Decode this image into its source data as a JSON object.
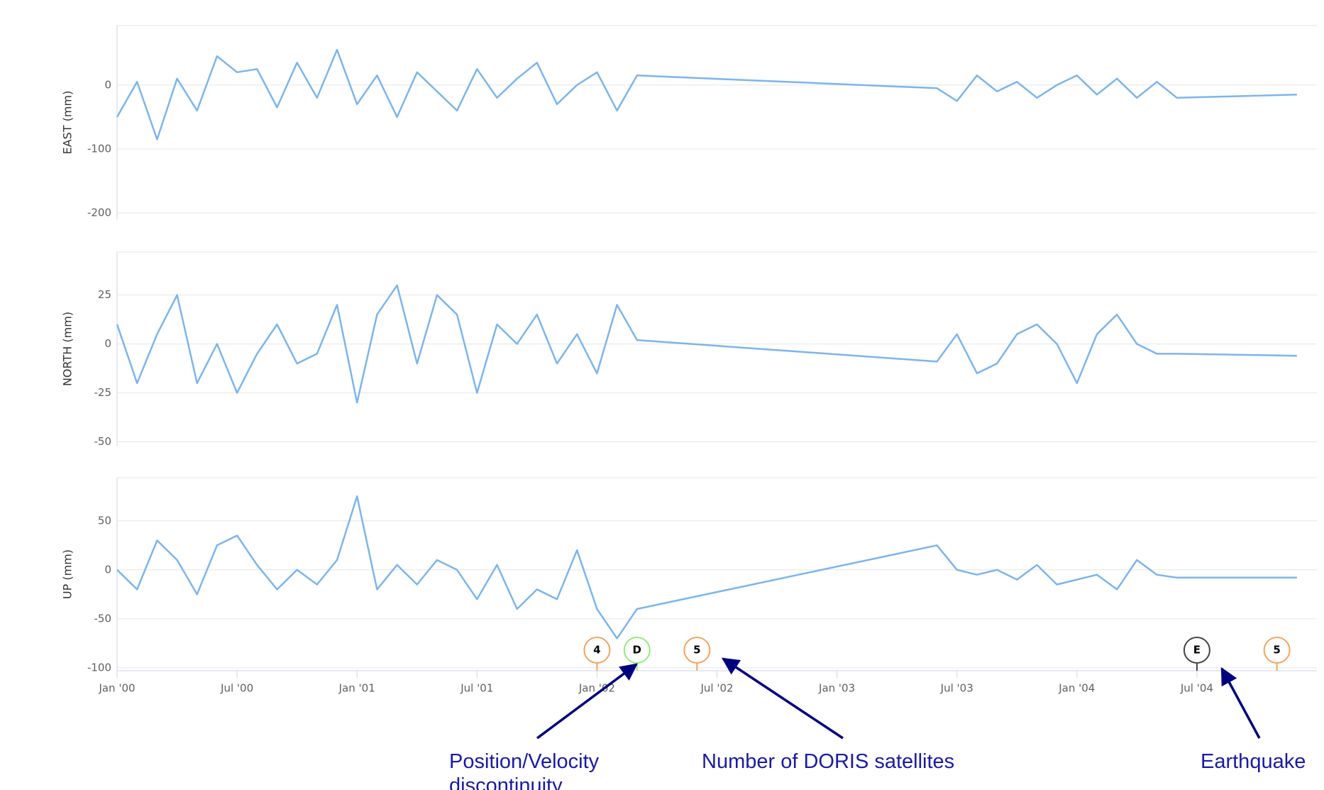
{
  "chart_data": [
    {
      "type": "line",
      "y_label": "EAST (mm)",
      "x": [
        "2000-01",
        "2000-02",
        "2000-03",
        "2000-04",
        "2000-05",
        "2000-06",
        "2000-07",
        "2000-08",
        "2000-09",
        "2000-10",
        "2000-11",
        "2000-12",
        "2001-01",
        "2001-02",
        "2001-03",
        "2001-04",
        "2001-05",
        "2001-06",
        "2001-07",
        "2001-08",
        "2001-09",
        "2001-10",
        "2001-11",
        "2001-12",
        "2002-01",
        "2002-02",
        "2002-03",
        "2003-06",
        "2003-07",
        "2003-08",
        "2003-09",
        "2003-10",
        "2003-11",
        "2003-12",
        "2004-01",
        "2004-02",
        "2004-03",
        "2004-04",
        "2004-05",
        "2004-06",
        "2004-12"
      ],
      "xlim": [
        "2000-01",
        "2005-01"
      ],
      "ylim": [
        -210,
        93
      ],
      "yticks": [
        -200,
        -100,
        0
      ],
      "grid": true,
      "series": [
        {
          "color": "#7cb5ec",
          "values": [
            -50,
            5,
            -85,
            10,
            -40,
            45,
            20,
            25,
            -35,
            35,
            -20,
            55,
            -30,
            15,
            -50,
            20,
            -10,
            -40,
            25,
            -20,
            10,
            35,
            -30,
            0,
            20,
            -40,
            15,
            -5,
            -25,
            15,
            -10,
            5,
            -20,
            0,
            15,
            -15,
            10,
            -20,
            5,
            -20,
            -15
          ]
        }
      ]
    },
    {
      "type": "line",
      "y_label": "NORTH (mm)",
      "x": [
        "2000-01",
        "2000-02",
        "2000-03",
        "2000-04",
        "2000-05",
        "2000-06",
        "2000-07",
        "2000-08",
        "2000-09",
        "2000-10",
        "2000-11",
        "2000-12",
        "2001-01",
        "2001-02",
        "2001-03",
        "2001-04",
        "2001-05",
        "2001-06",
        "2001-07",
        "2001-08",
        "2001-09",
        "2001-10",
        "2001-11",
        "2001-12",
        "2002-01",
        "2002-02",
        "2002-03",
        "2003-06",
        "2003-07",
        "2003-08",
        "2003-09",
        "2003-10",
        "2003-11",
        "2003-12",
        "2004-01",
        "2004-02",
        "2004-03",
        "2004-04",
        "2004-05",
        "2004-06",
        "2004-12"
      ],
      "xlim": [
        "2000-01",
        "2005-01"
      ],
      "ylim": [
        -52,
        47
      ],
      "yticks": [
        -50,
        -25,
        0,
        25
      ],
      "grid": true,
      "series": [
        {
          "color": "#7cb5ec",
          "values": [
            10,
            -20,
            5,
            25,
            -20,
            0,
            -25,
            -5,
            10,
            -10,
            -5,
            20,
            -30,
            15,
            30,
            -10,
            25,
            15,
            -25,
            10,
            0,
            15,
            -10,
            5,
            -15,
            20,
            2,
            -9,
            5,
            -15,
            -10,
            5,
            10,
            0,
            -20,
            5,
            15,
            0,
            -5,
            -5,
            -6
          ]
        }
      ]
    },
    {
      "type": "line",
      "y_label": "UP (mm)",
      "x": [
        "2000-01",
        "2000-02",
        "2000-03",
        "2000-04",
        "2000-05",
        "2000-06",
        "2000-07",
        "2000-08",
        "2000-09",
        "2000-10",
        "2000-11",
        "2000-12",
        "2001-01",
        "2001-02",
        "2001-03",
        "2001-04",
        "2001-05",
        "2001-06",
        "2001-07",
        "2001-08",
        "2001-09",
        "2001-10",
        "2001-11",
        "2001-12",
        "2002-01",
        "2002-02",
        "2002-03",
        "2003-06",
        "2003-07",
        "2003-08",
        "2003-09",
        "2003-10",
        "2003-11",
        "2003-12",
        "2004-01",
        "2004-02",
        "2004-03",
        "2004-04",
        "2004-05",
        "2004-06",
        "2004-12"
      ],
      "xlim": [
        "2000-01",
        "2005-01"
      ],
      "ylim": [
        -103,
        94
      ],
      "yticks": [
        -100,
        -50,
        0,
        50
      ],
      "grid": true,
      "xticks": [
        {
          "value": "2000-01",
          "label": "Jan '00"
        },
        {
          "value": "2000-07",
          "label": "Jul '00"
        },
        {
          "value": "2001-01",
          "label": "Jan '01"
        },
        {
          "value": "2001-07",
          "label": "Jul '01"
        },
        {
          "value": "2002-01",
          "label": "Jan '02"
        },
        {
          "value": "2002-07",
          "label": "Jul '02"
        },
        {
          "value": "2003-01",
          "label": "Jan '03"
        },
        {
          "value": "2003-07",
          "label": "Jul '03"
        },
        {
          "value": "2004-01",
          "label": "Jan '04"
        },
        {
          "value": "2004-07",
          "label": "Jul '04"
        }
      ],
      "flags": [
        {
          "x": "2002-01",
          "label": "4",
          "color": "#f7a35c"
        },
        {
          "x": "2002-03",
          "label": "D",
          "color": "#90ed7d"
        },
        {
          "x": "2002-06",
          "label": "5",
          "color": "#f7a35c"
        },
        {
          "x": "2004-07",
          "label": "E",
          "color": "#434348"
        },
        {
          "x": "2004-11",
          "label": "5",
          "color": "#f7a35c"
        }
      ],
      "series": [
        {
          "color": "#7cb5ec",
          "values": [
            0,
            -20,
            30,
            10,
            -25,
            25,
            35,
            5,
            -20,
            0,
            -15,
            10,
            75,
            -20,
            5,
            -15,
            10,
            0,
            -30,
            5,
            -40,
            -20,
            -30,
            20,
            -40,
            -70,
            -40,
            25,
            0,
            -5,
            0,
            -10,
            5,
            -15,
            -10,
            -5,
            -20,
            10,
            -5,
            -8,
            -8
          ]
        }
      ]
    }
  ],
  "annotations": [
    "Position/Velocity discontinuity",
    "Number of DORIS satellites",
    "Earthquake"
  ]
}
